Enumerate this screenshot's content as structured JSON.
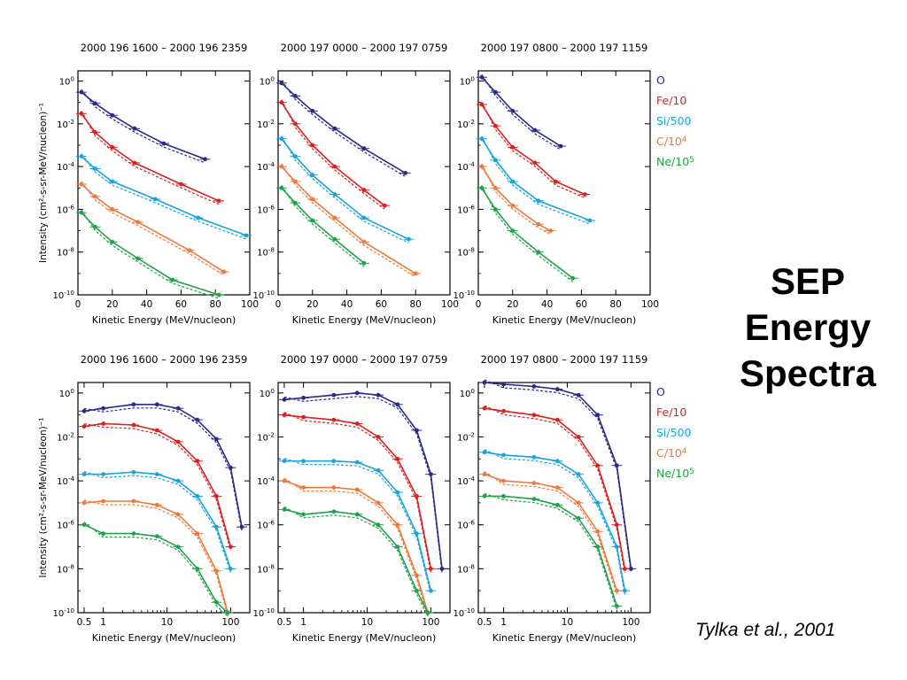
{
  "slide": {
    "title_lines": [
      "SEP",
      "Energy",
      "Spectra"
    ],
    "citation": "Tylka et al., 2001"
  },
  "chart_data": [
    {
      "type": "line",
      "row": "linear",
      "title": "2000 196 1600 – 2000 196 2359",
      "xlabel": "Kinetic Energy (MeV/nucleon)",
      "ylabel": "Intensity (cm²-s-sr-MeV/nucleon)⁻¹",
      "xscale": "linear",
      "yscale": "log",
      "xlim": [
        0,
        100
      ],
      "ylim": [
        1e-10,
        3
      ],
      "xticks": [
        0,
        20,
        40,
        60,
        80,
        100
      ],
      "yticks": [
        "10^0",
        "10^-2",
        "10^-4",
        "10^-6",
        "10^-8",
        "10^-10"
      ],
      "series": [
        {
          "name": "O",
          "color": "#2a2a8c",
          "x": [
            2,
            10,
            20,
            33,
            50,
            74
          ],
          "y": [
            0.3,
            0.09,
            0.025,
            0.006,
            0.0012,
            0.00022
          ]
        },
        {
          "name": "Fe/10",
          "color": "#d9211f",
          "x": [
            2,
            10,
            20,
            33,
            60,
            82
          ],
          "y": [
            0.03,
            0.004,
            0.0008,
            0.00015,
            1.5e-05,
            2.5e-06
          ]
        },
        {
          "name": "Si/500",
          "color": "#1aa3dc",
          "x": [
            2,
            10,
            20,
            45,
            70,
            98
          ],
          "y": [
            0.0003,
            8e-05,
            2e-05,
            3e-06,
            4e-07,
            6e-08
          ]
        },
        {
          "name": "C/10^4",
          "color": "#ec7a3c",
          "x": [
            2,
            10,
            20,
            35,
            65,
            85
          ],
          "y": [
            1.5e-05,
            4e-06,
            1e-06,
            2.5e-07,
            1.2e-08,
            1.2e-09
          ]
        },
        {
          "name": "Ne/10^5",
          "color": "#22a14a",
          "x": [
            2,
            10,
            20,
            35,
            55,
            82
          ],
          "y": [
            7e-07,
            1.5e-07,
            3e-08,
            5e-09,
            5e-10,
            1e-10
          ]
        }
      ]
    },
    {
      "type": "line",
      "row": "linear",
      "title": "2000 197 0000 – 2000 197 0759",
      "xlabel": "Kinetic Energy (MeV/nucleon)",
      "ylabel": "Intensity (cm²-s-sr-MeV/nucleon)⁻¹",
      "xscale": "linear",
      "yscale": "log",
      "xlim": [
        0,
        100
      ],
      "ylim": [
        1e-10,
        3
      ],
      "xticks": [
        0,
        20,
        40,
        60,
        80,
        100
      ],
      "yticks": [
        "10^0",
        "10^-2",
        "10^-4",
        "10^-6",
        "10^-8",
        "10^-10"
      ],
      "series": [
        {
          "name": "O",
          "color": "#2a2a8c",
          "x": [
            2,
            10,
            20,
            33,
            50,
            74
          ],
          "y": [
            0.8,
            0.2,
            0.04,
            0.006,
            0.0007,
            5e-05
          ]
        },
        {
          "name": "Fe/10",
          "color": "#d9211f",
          "x": [
            2,
            10,
            20,
            33,
            50,
            62
          ],
          "y": [
            0.1,
            0.01,
            0.001,
            0.0001,
            8e-06,
            1.5e-06
          ]
        },
        {
          "name": "Si/500",
          "color": "#1aa3dc",
          "x": [
            2,
            10,
            20,
            33,
            50,
            76
          ],
          "y": [
            0.002,
            0.0003,
            4e-05,
            5e-06,
            4e-07,
            4e-08
          ]
        },
        {
          "name": "C/10^4",
          "color": "#ec7a3c",
          "x": [
            2,
            10,
            20,
            33,
            50,
            80
          ],
          "y": [
            0.0001,
            2e-05,
            3e-06,
            4e-07,
            3e-08,
            1e-09
          ]
        },
        {
          "name": "Ne/10^5",
          "color": "#22a14a",
          "x": [
            2,
            10,
            20,
            33,
            50
          ],
          "y": [
            1e-05,
            2e-06,
            3e-07,
            4e-08,
            3e-09
          ]
        }
      ]
    },
    {
      "type": "line",
      "row": "linear",
      "title": "2000 197 0800 – 2000 197 1159",
      "xlabel": "Kinetic Energy (MeV/nucleon)",
      "ylabel": "Intensity (cm²-s-sr-MeV/nucleon)⁻¹",
      "xscale": "linear",
      "yscale": "log",
      "xlim": [
        0,
        100
      ],
      "ylim": [
        1e-10,
        3
      ],
      "xticks": [
        0,
        20,
        40,
        60,
        80,
        100
      ],
      "yticks": [
        "10^0",
        "10^-2",
        "10^-4",
        "10^-6",
        "10^-8",
        "10^-10"
      ],
      "series": [
        {
          "name": "O",
          "color": "#2a2a8c",
          "x": [
            2,
            10,
            20,
            33,
            48
          ],
          "y": [
            1.5,
            0.3,
            0.04,
            0.005,
            0.0009
          ]
        },
        {
          "name": "Fe/10",
          "color": "#d9211f",
          "x": [
            2,
            10,
            20,
            33,
            45,
            62
          ],
          "y": [
            0.08,
            0.008,
            0.0008,
            0.00015,
            2e-05,
            5e-06
          ]
        },
        {
          "name": "Si/500",
          "color": "#1aa3dc",
          "x": [
            2,
            10,
            20,
            35,
            65
          ],
          "y": [
            0.002,
            0.0002,
            2e-05,
            2.5e-06,
            3e-07
          ]
        },
        {
          "name": "C/10^4",
          "color": "#ec7a3c",
          "x": [
            2,
            10,
            20,
            35,
            42
          ],
          "y": [
            0.0001,
            1e-05,
            1.5e-06,
            2e-07,
            1e-07
          ]
        },
        {
          "name": "Ne/10^5",
          "color": "#22a14a",
          "x": [
            2,
            10,
            20,
            35,
            55
          ],
          "y": [
            1e-05,
            1e-06,
            1e-07,
            1e-08,
            6e-10
          ]
        }
      ]
    },
    {
      "type": "line",
      "row": "log",
      "title": "2000 196 1600 – 2000 196 2359",
      "xlabel": "Kinetic Energy (MeV/nucleon)",
      "ylabel": "Intensity (cm²-s-sr-MeV/nucleon)⁻¹",
      "xscale": "log",
      "yscale": "log",
      "xlim": [
        0.4,
        200
      ],
      "ylim": [
        1e-10,
        3
      ],
      "xticks": [
        "0.5",
        "1",
        "10",
        "100"
      ],
      "yticks": [
        "10^0",
        "10^-2",
        "10^-4",
        "10^-6",
        "10^-8",
        "10^-10"
      ],
      "series": [
        {
          "name": "O",
          "color": "#2a2a8c",
          "x": [
            0.5,
            1,
            3,
            7,
            15,
            30,
            60,
            100,
            150
          ],
          "y": [
            0.15,
            0.2,
            0.3,
            0.3,
            0.2,
            0.06,
            0.008,
            0.0004,
            8e-07
          ]
        },
        {
          "name": "Fe/10",
          "color": "#d9211f",
          "x": [
            0.5,
            1,
            3,
            7,
            15,
            30,
            60,
            100
          ],
          "y": [
            0.03,
            0.04,
            0.035,
            0.02,
            0.006,
            0.0008,
            2e-05,
            1e-07
          ]
        },
        {
          "name": "Si/500",
          "color": "#1aa3dc",
          "x": [
            0.5,
            1,
            3,
            7,
            15,
            30,
            60,
            100
          ],
          "y": [
            0.0002,
            0.0002,
            0.00025,
            0.0002,
            0.0001,
            2e-05,
            8e-07,
            1e-08
          ]
        },
        {
          "name": "C/10^4",
          "color": "#ec7a3c",
          "x": [
            0.5,
            1,
            3,
            7,
            15,
            30,
            60,
            90
          ],
          "y": [
            1e-05,
            1.2e-05,
            1.2e-05,
            8e-06,
            3e-06,
            4e-07,
            8e-09,
            1e-10
          ]
        },
        {
          "name": "Ne/10^5",
          "color": "#22a14a",
          "x": [
            0.5,
            1,
            3,
            7,
            15,
            30,
            60,
            90
          ],
          "y": [
            1e-06,
            4e-07,
            4e-07,
            3e-07,
            1e-07,
            1e-08,
            3e-10,
            1e-10
          ]
        }
      ]
    },
    {
      "type": "line",
      "row": "log",
      "title": "2000 197 0000 – 2000 197 0759",
      "xlabel": "Kinetic Energy (MeV/nucleon)",
      "ylabel": "Intensity (cm²-s-sr-MeV/nucleon)⁻¹",
      "xscale": "log",
      "yscale": "log",
      "xlim": [
        0.4,
        200
      ],
      "ylim": [
        1e-10,
        3
      ],
      "xticks": [
        "0.5",
        "1",
        "10",
        "100"
      ],
      "yticks": [
        "10^0",
        "10^-2",
        "10^-4",
        "10^-6",
        "10^-8",
        "10^-10"
      ],
      "series": [
        {
          "name": "O",
          "color": "#2a2a8c",
          "x": [
            0.5,
            1,
            3,
            7,
            15,
            30,
            60,
            100,
            150
          ],
          "y": [
            0.5,
            0.6,
            0.8,
            1.0,
            0.8,
            0.3,
            0.02,
            0.0002,
            1e-08
          ]
        },
        {
          "name": "Fe/10",
          "color": "#d9211f",
          "x": [
            0.5,
            1,
            3,
            7,
            15,
            30,
            60,
            100
          ],
          "y": [
            0.1,
            0.08,
            0.06,
            0.04,
            0.01,
            0.001,
            2e-05,
            1e-08
          ]
        },
        {
          "name": "Si/500",
          "color": "#1aa3dc",
          "x": [
            0.5,
            1,
            3,
            7,
            15,
            30,
            60,
            100
          ],
          "y": [
            0.0008,
            0.0008,
            0.0008,
            0.0007,
            0.0003,
            3e-05,
            4e-07,
            1e-09
          ]
        },
        {
          "name": "C/10^4",
          "color": "#ec7a3c",
          "x": [
            0.5,
            1,
            3,
            7,
            15,
            30,
            60,
            90
          ],
          "y": [
            0.0001,
            5e-05,
            5e-05,
            4e-05,
            1e-05,
            1e-06,
            5e-09,
            1e-10
          ]
        },
        {
          "name": "Ne/10^5",
          "color": "#22a14a",
          "x": [
            0.5,
            1,
            3,
            7,
            15,
            30,
            60,
            90
          ],
          "y": [
            5e-06,
            3e-06,
            4e-06,
            3e-06,
            1e-06,
            1e-07,
            1e-09,
            1e-10
          ]
        }
      ]
    },
    {
      "type": "line",
      "row": "log",
      "title": "2000 197 0800 – 2000 197 1159",
      "xlabel": "Kinetic Energy (MeV/nucleon)",
      "ylabel": "Intensity (cm²-s-sr-MeV/nucleon)⁻¹",
      "xscale": "log",
      "yscale": "log",
      "xlim": [
        0.4,
        200
      ],
      "ylim": [
        1e-10,
        3
      ],
      "xticks": [
        "0.5",
        "1",
        "10",
        "100"
      ],
      "yticks": [
        "10^0",
        "10^-2",
        "10^-4",
        "10^-6",
        "10^-8",
        "10^-10"
      ],
      "series": [
        {
          "name": "O",
          "color": "#2a2a8c",
          "x": [
            0.5,
            1,
            3,
            7,
            15,
            30,
            60,
            100
          ],
          "y": [
            3,
            2.5,
            2,
            1.5,
            0.8,
            0.1,
            0.0005,
            1e-08
          ]
        },
        {
          "name": "Fe/10",
          "color": "#d9211f",
          "x": [
            0.5,
            1,
            3,
            7,
            15,
            30,
            60,
            80
          ],
          "y": [
            0.2,
            0.15,
            0.1,
            0.06,
            0.01,
            0.0005,
            1e-06,
            1e-08
          ]
        },
        {
          "name": "Si/500",
          "color": "#1aa3dc",
          "x": [
            0.5,
            1,
            3,
            7,
            15,
            30,
            60,
            80
          ],
          "y": [
            0.002,
            0.0015,
            0.0012,
            0.0008,
            0.0002,
            1e-05,
            1e-07,
            1e-09
          ]
        },
        {
          "name": "C/10^4",
          "color": "#ec7a3c",
          "x": [
            0.5,
            1,
            3,
            7,
            15,
            30,
            60
          ],
          "y": [
            0.0002,
            0.0001,
            8e-05,
            5e-05,
            1e-05,
            5e-07,
            1e-09
          ]
        },
        {
          "name": "Ne/10^5",
          "color": "#22a14a",
          "x": [
            0.5,
            1,
            3,
            7,
            15,
            30,
            60
          ],
          "y": [
            2e-05,
            2e-05,
            1.5e-05,
            8e-06,
            2e-06,
            1e-07,
            2e-10
          ]
        }
      ]
    }
  ]
}
